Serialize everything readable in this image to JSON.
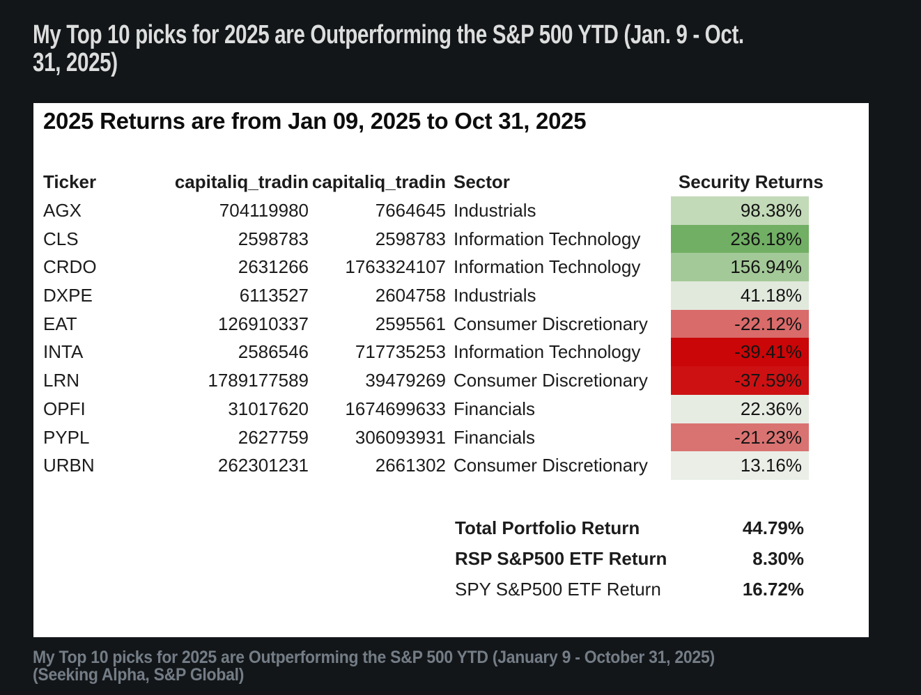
{
  "article": {
    "title_line1": "My Top 10 picks for 2025 are Outperforming the S&P 500 YTD (Jan. 9 - Oct.",
    "title_line2": "31, 2025)",
    "caption_line1": "My Top 10 picks for 2025 are Outperforming the S&P 500 YTD (January 9 - October 31, 2025)",
    "caption_line2": "(Seeking Alpha, S&P Global)"
  },
  "chart_data": {
    "type": "table",
    "title": "2025 Returns are from Jan 09, 2025 to Oct 31, 2025",
    "columns": [
      "Ticker",
      "capitaliq_tradin",
      "capitaliq_tradin",
      "Sector",
      "Security Returns"
    ],
    "rows": [
      {
        "ticker": "AGX",
        "id1": "704119980",
        "id2": "7664645",
        "sector": "Industrials",
        "ret": "98.38%",
        "bg": "#c3dab8"
      },
      {
        "ticker": "CLS",
        "id1": "2598783",
        "id2": "2598783",
        "sector": "Information Technology",
        "ret": "236.18%",
        "bg": "#71af64"
      },
      {
        "ticker": "CRDO",
        "id1": "2631266",
        "id2": "1763324107",
        "sector": "Information Technology",
        "ret": "156.94%",
        "bg": "#a4c998"
      },
      {
        "ticker": "DXPE",
        "id1": "6113527",
        "id2": "2604758",
        "sector": "Industrials",
        "ret": "41.18%",
        "bg": "#e1e9dc"
      },
      {
        "ticker": "EAT",
        "id1": "126910337",
        "id2": "2595561",
        "sector": "Consumer Discretionary",
        "ret": "-22.12%",
        "bg": "#d96b6a"
      },
      {
        "ticker": "INTA",
        "id1": "2586546",
        "id2": "717735253",
        "sector": "Information Technology",
        "ret": "-39.41%",
        "bg": "#ca0608"
      },
      {
        "ticker": "LRN",
        "id1": "1789177589",
        "id2": "39479269",
        "sector": "Consumer Discretionary",
        "ret": "-37.59%",
        "bg": "#cd1113"
      },
      {
        "ticker": "OPFI",
        "id1": "31017620",
        "id2": "1674699633",
        "sector": "Financials",
        "ret": "22.36%",
        "bg": "#e7ece3"
      },
      {
        "ticker": "PYPL",
        "id1": "2627759",
        "id2": "306093931",
        "sector": "Financials",
        "ret": "-21.23%",
        "bg": "#d97371"
      },
      {
        "ticker": "URBN",
        "id1": "262301231",
        "id2": "2661302",
        "sector": "Consumer Discretionary",
        "ret": "13.16%",
        "bg": "#eaeee7"
      }
    ],
    "summary": [
      {
        "label": "Total Portfolio Return",
        "value": "44.79%"
      },
      {
        "label": "RSP S&P500 ETF Return",
        "value": "8.30%"
      },
      {
        "label": "SPY S&P500 ETF Return",
        "value": "16.72%"
      }
    ],
    "colors": {
      "strong_positive": "#71af64",
      "light_positive": "#c3dab8",
      "neutral": "#e7ece3",
      "light_negative": "#d96b6a",
      "strong_negative": "#ca0608",
      "page_background": "#131619",
      "card_background": "#ffffff",
      "title_text": "#dcdddd",
      "caption_text": "#747d86"
    },
    "layout": {
      "grid": "off",
      "legend": "none",
      "value_alignment": "right"
    }
  }
}
